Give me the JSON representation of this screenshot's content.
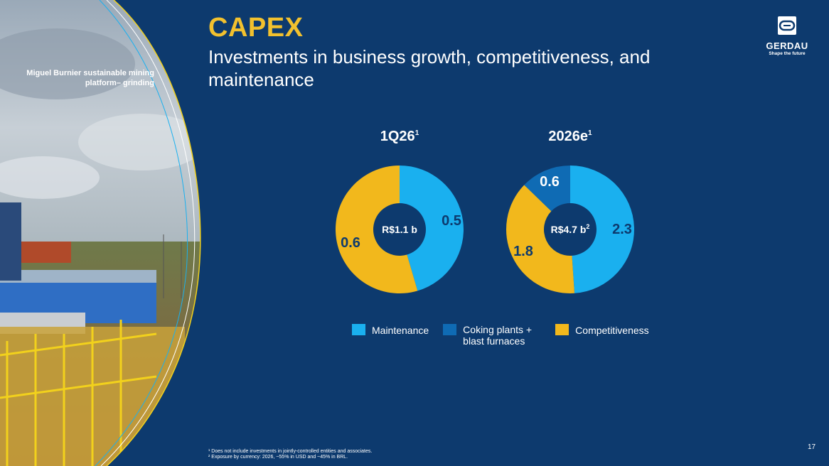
{
  "header": {
    "title": "CAPEX",
    "subtitle": "Investments in business growth, competitiveness, and maintenance"
  },
  "photo": {
    "caption": "Miguel Burnier sustainable mining platform– grinding"
  },
  "logo": {
    "name": "GERDAU",
    "tagline": "Shape the future"
  },
  "colors": {
    "background": "#0d3a6e",
    "maintenance": "#1ab0ef",
    "coking": "#0f6bb4",
    "competitiveness": "#f2b81c",
    "title": "#f2c12e"
  },
  "chart_data": [
    {
      "type": "pie",
      "title": "1Q26",
      "title_sup": "1",
      "center_label": "R$1.1 b",
      "center_sup": "",
      "unit": "R$ billion",
      "slices": [
        {
          "name": "Maintenance",
          "value": 0.5,
          "label": "0.5"
        },
        {
          "name": "Competitiveness",
          "value": 0.6,
          "label": "0.6"
        }
      ]
    },
    {
      "type": "pie",
      "title": "2026e",
      "title_sup": "1",
      "center_label": "R$4.7 b",
      "center_sup": "2",
      "unit": "R$ billion",
      "slices": [
        {
          "name": "Maintenance",
          "value": 2.3,
          "label": "2.3"
        },
        {
          "name": "Competitiveness",
          "value": 1.8,
          "label": "1.8"
        },
        {
          "name": "Coking plants + blast furnaces",
          "value": 0.6,
          "label": "0.6"
        }
      ]
    }
  ],
  "legend": [
    {
      "label": "Maintenance",
      "key": "maintenance"
    },
    {
      "label": "Coking plants + blast furnaces",
      "key": "coking"
    },
    {
      "label": "Competitiveness",
      "key": "competitiveness"
    }
  ],
  "footnotes": [
    "¹ Does not include investments in jointly-controlled entities and associates.",
    "² Exposure by currency: 2026, ~55% in USD and ~45% in BRL."
  ],
  "page_number": "17"
}
